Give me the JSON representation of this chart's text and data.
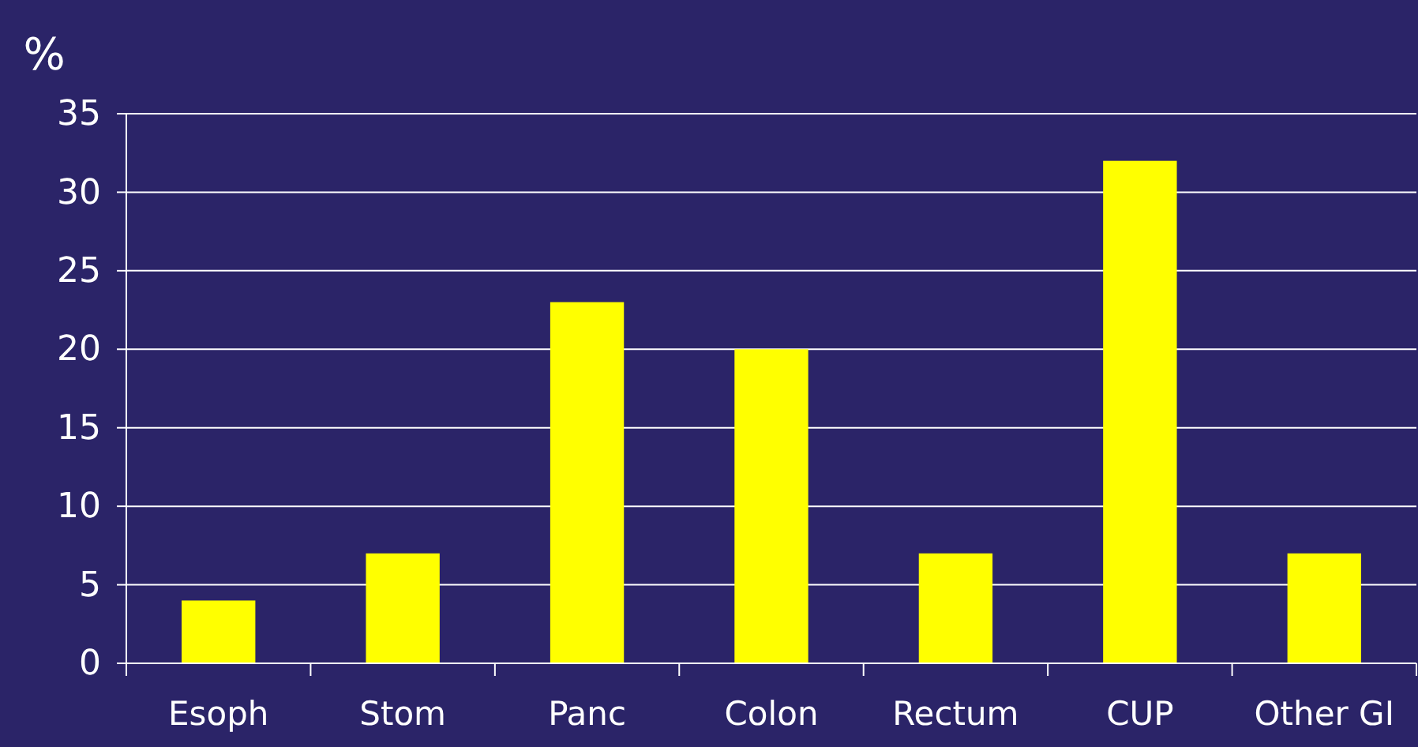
{
  "chart_data": {
    "type": "bar",
    "ylabel": "%",
    "categories": [
      "Esoph",
      "Stom",
      "Panc",
      "Colon",
      "Rectum",
      "CUP",
      "Other GI"
    ],
    "values": [
      4,
      7,
      23,
      20,
      7,
      32,
      7
    ],
    "color": "#ffff00",
    "ylim": [
      0,
      35
    ],
    "yticks": [
      0,
      5,
      10,
      15,
      20,
      25,
      30,
      35
    ],
    "grid": "y"
  }
}
